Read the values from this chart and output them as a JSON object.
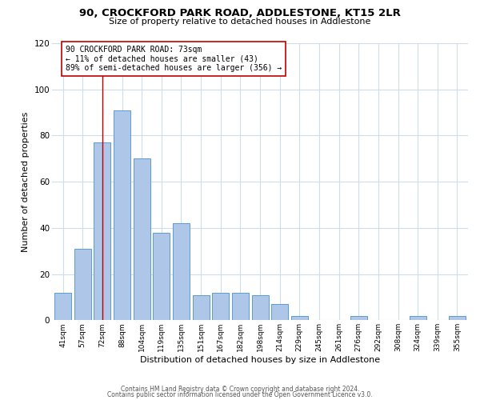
{
  "title_line1": "90, CROCKFORD PARK ROAD, ADDLESTONE, KT15 2LR",
  "title_line2": "Size of property relative to detached houses in Addlestone",
  "xlabel": "Distribution of detached houses by size in Addlestone",
  "ylabel": "Number of detached properties",
  "bar_labels": [
    "41sqm",
    "57sqm",
    "72sqm",
    "88sqm",
    "104sqm",
    "119sqm",
    "135sqm",
    "151sqm",
    "167sqm",
    "182sqm",
    "198sqm",
    "214sqm",
    "229sqm",
    "245sqm",
    "261sqm",
    "276sqm",
    "292sqm",
    "308sqm",
    "324sqm",
    "339sqm",
    "355sqm"
  ],
  "bar_values": [
    12,
    31,
    77,
    91,
    70,
    38,
    42,
    11,
    12,
    12,
    11,
    7,
    2,
    0,
    0,
    2,
    0,
    0,
    2,
    0,
    2
  ],
  "bar_color": "#aec6e8",
  "bar_edge_color": "#5b9bd5",
  "marker_index": 2,
  "marker_line_color": "#c00000",
  "annotation_text_line1": "90 CROCKFORD PARK ROAD: 73sqm",
  "annotation_text_line2": "← 11% of detached houses are smaller (43)",
  "annotation_text_line3": "89% of semi-detached houses are larger (356) →",
  "annotation_box_color": "#ffffff",
  "annotation_border_color": "#c00000",
  "ylim": [
    0,
    120
  ],
  "yticks": [
    0,
    20,
    40,
    60,
    80,
    100,
    120
  ],
  "footer_line1": "Contains HM Land Registry data © Crown copyright and database right 2024.",
  "footer_line2": "Contains public sector information licensed under the Open Government Licence v3.0.",
  "background_color": "#ffffff",
  "grid_color": "#d0dce8"
}
